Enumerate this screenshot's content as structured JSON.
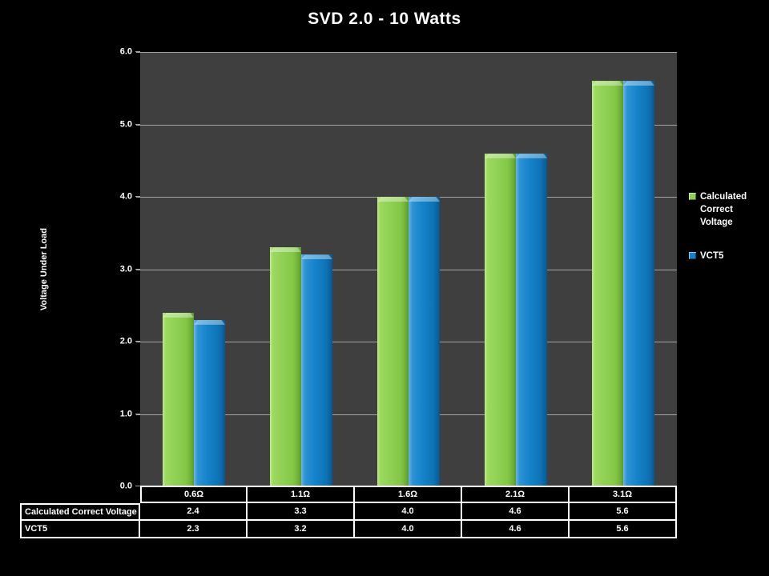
{
  "title": "SVD 2.0 - 10 Watts",
  "y_axis": {
    "title": "Voltage Under Load",
    "tick_labels": [
      "0.0",
      "1.0",
      "2.0",
      "3.0",
      "4.0",
      "5.0",
      "6.0"
    ]
  },
  "legend": {
    "items": [
      {
        "label": "Calculated Correct Voltage",
        "color": "#8ed053"
      },
      {
        "label": "VCT5",
        "color": "#1482ca"
      }
    ]
  },
  "table": {
    "row_labels": [
      "Calculated Correct Voltage",
      "VCT5"
    ],
    "column_headers": [
      "0.6Ω",
      "1.1Ω",
      "1.6Ω",
      "2.1Ω",
      "3.1Ω"
    ],
    "rows": [
      [
        "2.4",
        "3.3",
        "4.0",
        "4.6",
        "5.6"
      ],
      [
        "2.3",
        "3.2",
        "4.0",
        "4.6",
        "5.6"
      ]
    ]
  },
  "chart_data": {
    "type": "bar",
    "title": "SVD 2.0 - 10 Watts",
    "xlabel": "",
    "ylabel": "Voltage Under Load",
    "categories": [
      "0.6Ω",
      "1.1Ω",
      "1.6Ω",
      "2.1Ω",
      "3.1Ω"
    ],
    "series": [
      {
        "name": "Calculated Correct Voltage",
        "color": "#8ed053",
        "values": [
          2.4,
          3.3,
          4.0,
          4.6,
          5.6
        ]
      },
      {
        "name": "VCT5",
        "color": "#1482ca",
        "values": [
          2.3,
          3.2,
          4.0,
          4.6,
          5.6
        ]
      }
    ],
    "ylim": [
      0,
      6
    ],
    "ytick_step": 1.0,
    "grid": true,
    "legend_position": "right",
    "data_table_shown": true,
    "colors": {
      "page_bg": "#000000",
      "plot_bg": "#3f3f3f",
      "gridline": "#a3a3a3",
      "text": "#ffffff",
      "table_border": "#ffffff"
    }
  }
}
